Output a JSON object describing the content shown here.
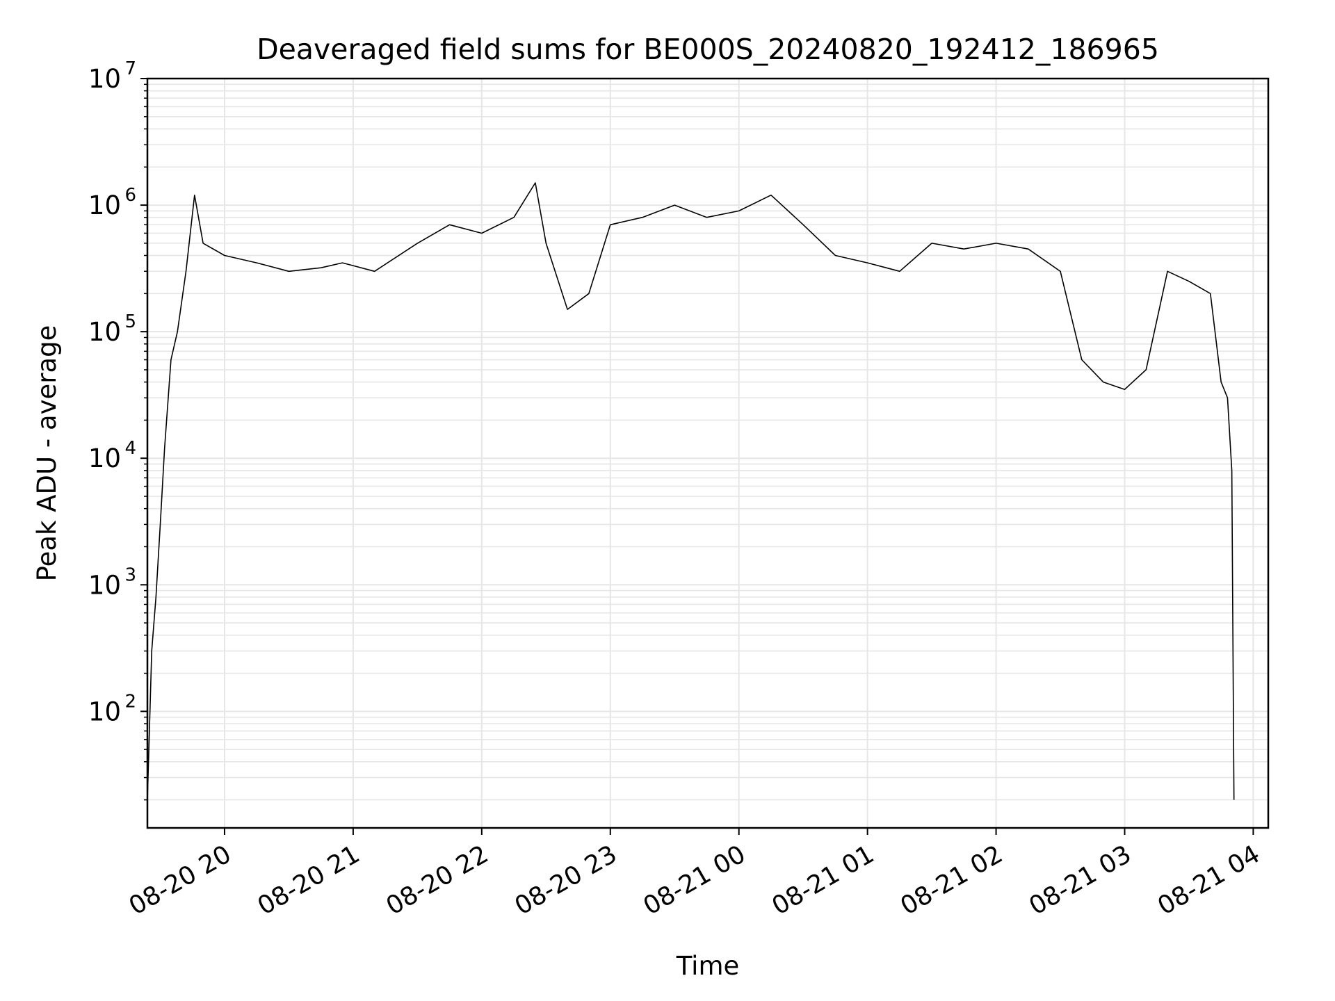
{
  "chart_data": {
    "type": "line",
    "title": "Deaveraged field sums for BE000S_20240820_192412_186965",
    "xlabel": "Time",
    "ylabel": "Peak ADU - average",
    "yscale": "log",
    "ylim": [
      12,
      10000000
    ],
    "xlim": [
      "2024-08-20 19:24",
      "2024-08-21 04:07"
    ],
    "grid": true,
    "line_color": "#000000",
    "grid_color": "#e6e6e6",
    "x_ticks": [
      {
        "t": "2024-08-20 20:00",
        "label": "08-20 20"
      },
      {
        "t": "2024-08-20 21:00",
        "label": "08-20 21"
      },
      {
        "t": "2024-08-20 22:00",
        "label": "08-20 22"
      },
      {
        "t": "2024-08-20 23:00",
        "label": "08-20 23"
      },
      {
        "t": "2024-08-21 00:00",
        "label": "08-21 00"
      },
      {
        "t": "2024-08-21 01:00",
        "label": "08-21 01"
      },
      {
        "t": "2024-08-21 02:00",
        "label": "08-21 02"
      },
      {
        "t": "2024-08-21 03:00",
        "label": "08-21 03"
      },
      {
        "t": "2024-08-21 04:00",
        "label": "08-21 04"
      }
    ],
    "y_ticks": [
      {
        "value": 100,
        "base": "10",
        "exp": "2"
      },
      {
        "value": 1000,
        "base": "10",
        "exp": "3"
      },
      {
        "value": 10000,
        "base": "10",
        "exp": "4"
      },
      {
        "value": 100000,
        "base": "10",
        "exp": "5"
      },
      {
        "value": 1000000,
        "base": "10",
        "exp": "6"
      },
      {
        "value": 10000000,
        "base": "10",
        "exp": "7"
      }
    ],
    "series": [
      {
        "x": [
          "2024-08-20 19:24",
          "2024-08-20 19:26",
          "2024-08-20 19:28",
          "2024-08-20 19:30",
          "2024-08-20 19:32",
          "2024-08-20 19:35",
          "2024-08-20 19:38",
          "2024-08-20 19:42",
          "2024-08-20 19:46",
          "2024-08-20 19:50",
          "2024-08-20 20:00",
          "2024-08-20 20:15",
          "2024-08-20 20:30",
          "2024-08-20 20:45",
          "2024-08-20 20:55",
          "2024-08-20 21:10",
          "2024-08-20 21:30",
          "2024-08-20 21:45",
          "2024-08-20 22:00",
          "2024-08-20 22:15",
          "2024-08-20 22:25",
          "2024-08-20 22:30",
          "2024-08-20 22:40",
          "2024-08-20 22:50",
          "2024-08-20 23:00",
          "2024-08-20 23:15",
          "2024-08-20 23:30",
          "2024-08-20 23:45",
          "2024-08-21 00:00",
          "2024-08-21 00:15",
          "2024-08-21 00:30",
          "2024-08-21 00:45",
          "2024-08-21 01:00",
          "2024-08-21 01:15",
          "2024-08-21 01:30",
          "2024-08-21 01:45",
          "2024-08-21 02:00",
          "2024-08-21 02:15",
          "2024-08-21 02:30",
          "2024-08-21 02:40",
          "2024-08-21 02:50",
          "2024-08-21 03:00",
          "2024-08-21 03:10",
          "2024-08-21 03:20",
          "2024-08-21 03:30",
          "2024-08-21 03:40",
          "2024-08-21 03:45",
          "2024-08-21 03:48",
          "2024-08-21 03:50",
          "2024-08-21 03:51"
        ],
        "y": [
          20,
          300,
          800,
          3000,
          12000,
          60000,
          100000,
          300000,
          1200000,
          500000,
          400000,
          350000,
          300000,
          320000,
          350000,
          300000,
          500000,
          700000,
          600000,
          800000,
          1500000,
          500000,
          150000,
          200000,
          700000,
          800000,
          1000000,
          800000,
          900000,
          1200000,
          700000,
          400000,
          350000,
          300000,
          500000,
          450000,
          500000,
          450000,
          300000,
          60000,
          40000,
          35000,
          50000,
          300000,
          250000,
          200000,
          40000,
          30000,
          8000,
          20
        ]
      }
    ]
  }
}
